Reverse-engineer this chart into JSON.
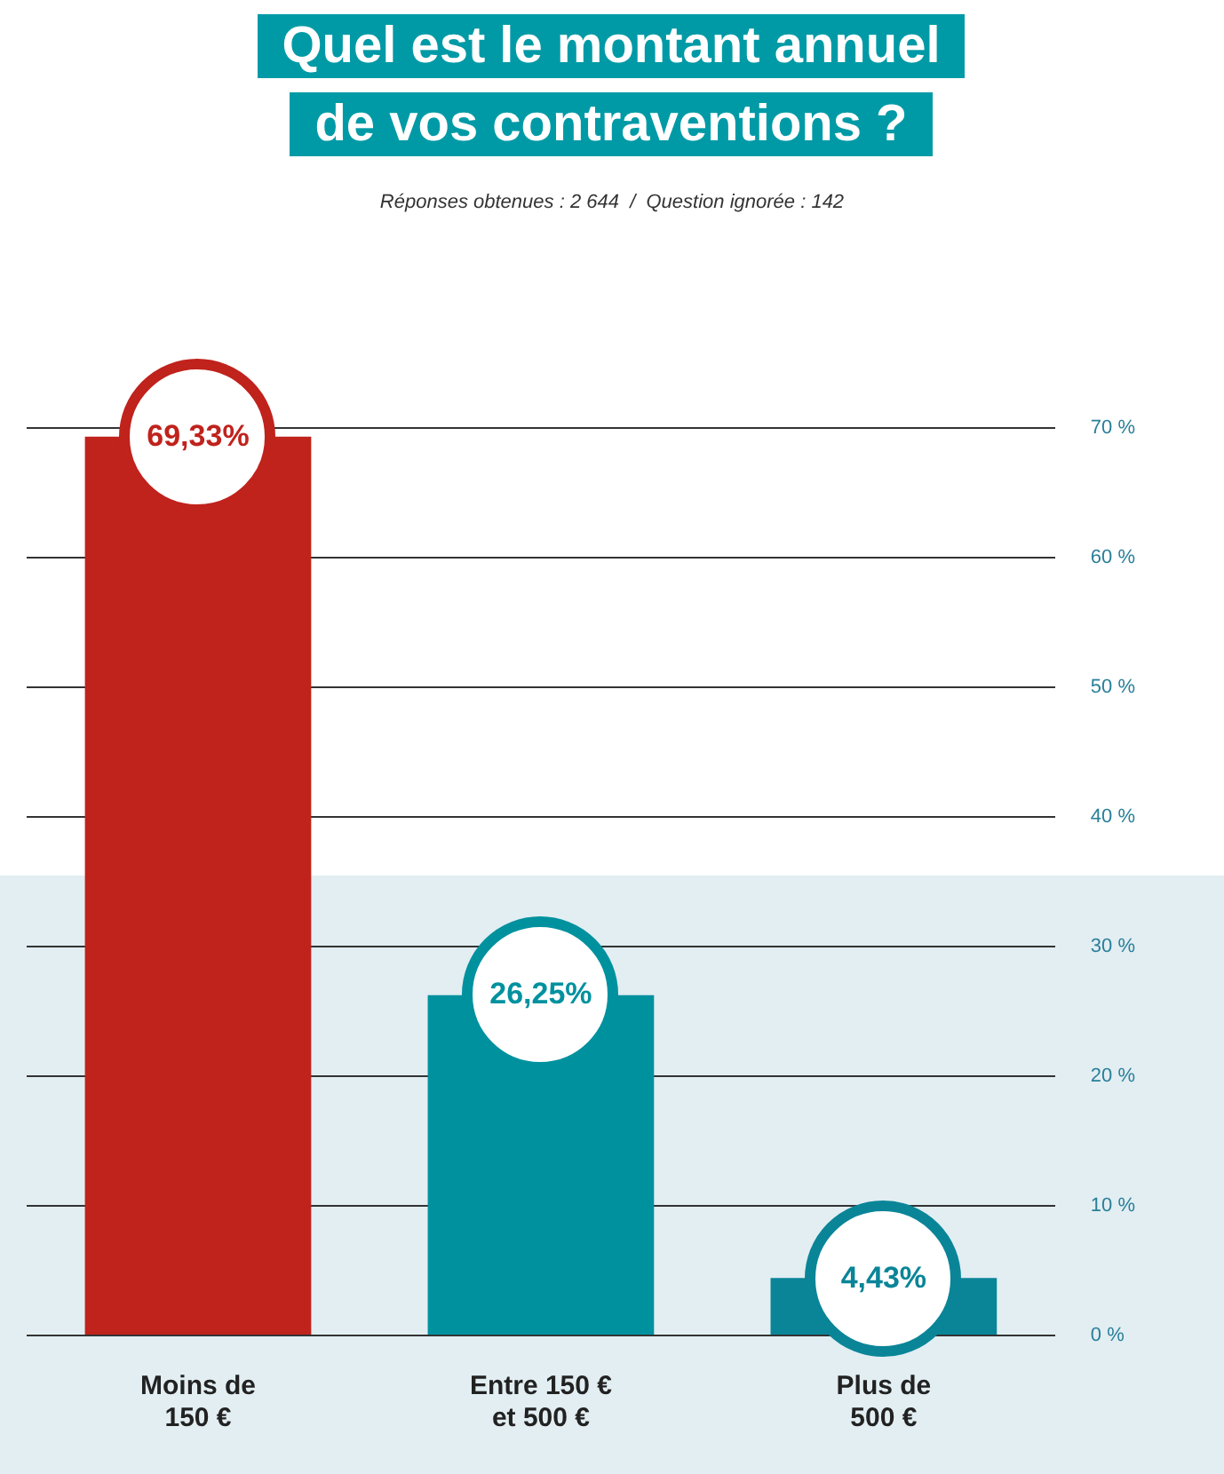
{
  "chart_data": {
    "type": "bar",
    "title": "Quel est le montant annuel de vos contraventions ?",
    "subtitle": "Réponses obtenues : 2 644  /  Question ignorée : 142",
    "categories": [
      "Moins de 150 €",
      "Entre 150 € et 500 €",
      "Plus de 500 €"
    ],
    "values": [
      69.33,
      26.25,
      4.43
    ],
    "colors": [
      "#c0221c",
      "#00919f",
      "#0a8598"
    ],
    "value_labels": [
      "69,33%",
      "26,25%",
      "4,43%"
    ],
    "ylim": [
      0,
      70
    ],
    "yticks": [
      {
        "value": 0,
        "label": "0 %"
      },
      {
        "value": 10,
        "label": "10 %"
      },
      {
        "value": 20,
        "label": "20 %"
      },
      {
        "value": 30,
        "label": "30 %"
      },
      {
        "value": 40,
        "label": "40 %"
      },
      {
        "value": 50,
        "label": "50 %"
      },
      {
        "value": 60,
        "label": "60 %"
      },
      {
        "value": 70,
        "label": "70 %"
      }
    ],
    "grid": "y",
    "legend": false
  }
}
